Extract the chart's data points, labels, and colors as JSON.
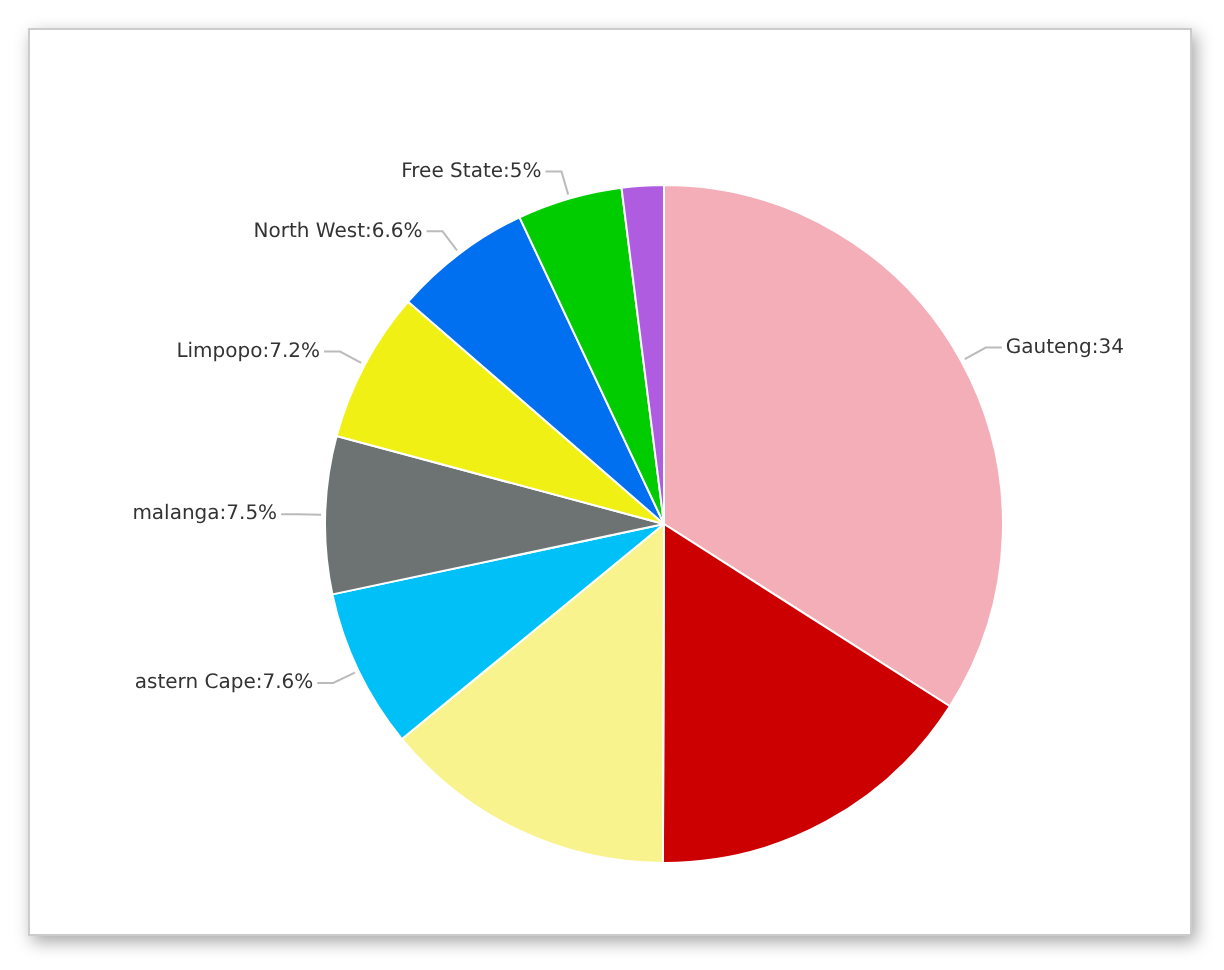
{
  "chart_data": {
    "type": "pie",
    "categories": [
      "Gauteng",
      null,
      null,
      "astern Cape",
      "malanga",
      "Limpopo",
      "North West",
      "Free State",
      null
    ],
    "values": [
      34,
      16,
      14,
      7.6,
      7.5,
      7.2,
      6.6,
      5,
      2
    ],
    "value_labels": [
      "34",
      null,
      null,
      "7.6%",
      "7.5%",
      "7.2%",
      "6.6%",
      "5%",
      null
    ],
    "colors": [
      "#f4aeb8",
      "#cc0000",
      "#f9f38e",
      "#00c0f8",
      "#6d7272",
      "#f0f014",
      "#0070f0",
      "#00cc00",
      "#b05ce0"
    ],
    "legend": false
  }
}
